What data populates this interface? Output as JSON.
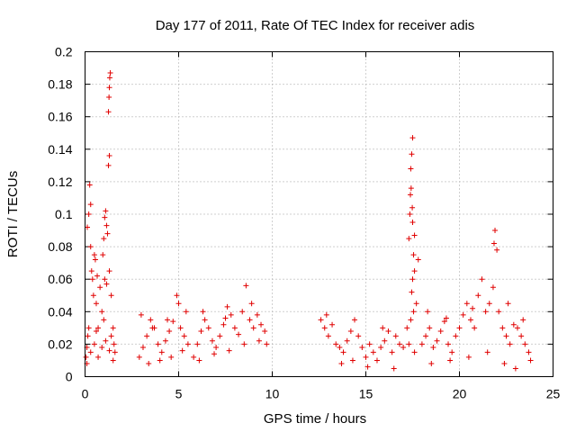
{
  "chart_data": {
    "type": "scatter",
    "title": "Day 177 of 2011, Rate Of TEC Index for receiver adis",
    "xlabel": "GPS time / hours",
    "ylabel": "ROTI / TECUs",
    "xlim": [
      0,
      25
    ],
    "ylim": [
      0,
      0.2
    ],
    "xticks": [
      0,
      5,
      10,
      15,
      20,
      25
    ],
    "xtick_labels": [
      "0",
      "5",
      "10",
      "15",
      "20",
      "25"
    ],
    "yticks": [
      0,
      0.02,
      0.04,
      0.06,
      0.08,
      0.1,
      0.12,
      0.14,
      0.16,
      0.18,
      0.2
    ],
    "ytick_labels": [
      "0",
      "0.02",
      "0.04",
      "0.06",
      "0.08",
      "0.1",
      "0.12",
      "0.14",
      "0.16",
      "0.18",
      "0.2"
    ],
    "grid": true,
    "marker": "+",
    "color": "#e00000",
    "series": [
      {
        "name": "ROTI",
        "points": [
          [
            0.05,
            0.012
          ],
          [
            0.1,
            0.018
          ],
          [
            0.15,
            0.025
          ],
          [
            0.2,
            0.1
          ],
          [
            0.25,
            0.118
          ],
          [
            0.3,
            0.106
          ],
          [
            0.12,
            0.092
          ],
          [
            0.35,
            0.065
          ],
          [
            0.4,
            0.06
          ],
          [
            0.45,
            0.05
          ],
          [
            0.5,
            0.075
          ],
          [
            0.55,
            0.072
          ],
          [
            0.3,
            0.08
          ],
          [
            0.6,
            0.045
          ],
          [
            0.65,
            0.062
          ],
          [
            0.7,
            0.03
          ],
          [
            0.8,
            0.055
          ],
          [
            0.9,
            0.04
          ],
          [
            1.0,
            0.085
          ],
          [
            1.05,
            0.098
          ],
          [
            1.1,
            0.102
          ],
          [
            1.15,
            0.093
          ],
          [
            0.95,
            0.075
          ],
          [
            1.05,
            0.06
          ],
          [
            1.15,
            0.057
          ],
          [
            1.2,
            0.088
          ],
          [
            1.25,
            0.163
          ],
          [
            1.28,
            0.172
          ],
          [
            1.3,
            0.178
          ],
          [
            1.32,
            0.184
          ],
          [
            1.35,
            0.187
          ],
          [
            1.3,
            0.136
          ],
          [
            1.25,
            0.13
          ],
          [
            1.3,
            0.065
          ],
          [
            1.4,
            0.05
          ],
          [
            1.5,
            0.03
          ],
          [
            1.55,
            0.02
          ],
          [
            1.6,
            0.015
          ],
          [
            0.1,
            0.008
          ],
          [
            0.3,
            0.015
          ],
          [
            0.5,
            0.02
          ],
          [
            0.7,
            0.012
          ],
          [
            0.9,
            0.018
          ],
          [
            1.1,
            0.022
          ],
          [
            1.3,
            0.016
          ],
          [
            1.5,
            0.01
          ],
          [
            0.2,
            0.03
          ],
          [
            0.6,
            0.028
          ],
          [
            1.0,
            0.035
          ],
          [
            1.4,
            0.025
          ],
          [
            2.9,
            0.012
          ],
          [
            3.1,
            0.018
          ],
          [
            3.3,
            0.025
          ],
          [
            3.5,
            0.035
          ],
          [
            3.7,
            0.03
          ],
          [
            3.9,
            0.02
          ],
          [
            4.1,
            0.015
          ],
          [
            4.3,
            0.022
          ],
          [
            4.5,
            0.028
          ],
          [
            4.7,
            0.034
          ],
          [
            4.9,
            0.05
          ],
          [
            5.0,
            0.045
          ],
          [
            5.1,
            0.03
          ],
          [
            5.3,
            0.025
          ],
          [
            5.5,
            0.02
          ],
          [
            3.4,
            0.008
          ],
          [
            4.0,
            0.01
          ],
          [
            4.6,
            0.012
          ],
          [
            5.2,
            0.016
          ],
          [
            3.0,
            0.038
          ],
          [
            3.6,
            0.03
          ],
          [
            4.4,
            0.035
          ],
          [
            5.4,
            0.04
          ],
          [
            5.8,
            0.012
          ],
          [
            6.0,
            0.02
          ],
          [
            6.2,
            0.028
          ],
          [
            6.4,
            0.035
          ],
          [
            6.6,
            0.03
          ],
          [
            6.8,
            0.022
          ],
          [
            7.0,
            0.018
          ],
          [
            7.2,
            0.025
          ],
          [
            7.4,
            0.032
          ],
          [
            7.6,
            0.043
          ],
          [
            7.8,
            0.038
          ],
          [
            8.0,
            0.03
          ],
          [
            8.2,
            0.026
          ],
          [
            8.4,
            0.04
          ],
          [
            8.6,
            0.056
          ],
          [
            8.8,
            0.035
          ],
          [
            9.0,
            0.03
          ],
          [
            9.2,
            0.038
          ],
          [
            9.4,
            0.032
          ],
          [
            9.6,
            0.028
          ],
          [
            9.7,
            0.02
          ],
          [
            6.1,
            0.01
          ],
          [
            6.9,
            0.014
          ],
          [
            7.7,
            0.016
          ],
          [
            8.5,
            0.02
          ],
          [
            9.3,
            0.022
          ],
          [
            6.3,
            0.04
          ],
          [
            7.5,
            0.036
          ],
          [
            8.9,
            0.045
          ],
          [
            12.6,
            0.035
          ],
          [
            12.8,
            0.03
          ],
          [
            13.0,
            0.025
          ],
          [
            13.2,
            0.032
          ],
          [
            13.4,
            0.02
          ],
          [
            13.6,
            0.018
          ],
          [
            13.8,
            0.015
          ],
          [
            14.0,
            0.022
          ],
          [
            14.2,
            0.028
          ],
          [
            14.4,
            0.035
          ],
          [
            14.6,
            0.025
          ],
          [
            14.8,
            0.018
          ],
          [
            15.0,
            0.012
          ],
          [
            15.2,
            0.02
          ],
          [
            15.4,
            0.015
          ],
          [
            15.6,
            0.01
          ],
          [
            15.8,
            0.018
          ],
          [
            16.0,
            0.022
          ],
          [
            16.2,
            0.028
          ],
          [
            16.4,
            0.015
          ],
          [
            16.6,
            0.025
          ],
          [
            16.8,
            0.02
          ],
          [
            17.0,
            0.018
          ],
          [
            12.9,
            0.038
          ],
          [
            13.7,
            0.008
          ],
          [
            14.3,
            0.01
          ],
          [
            15.1,
            0.006
          ],
          [
            15.9,
            0.03
          ],
          [
            16.5,
            0.005
          ],
          [
            17.2,
            0.03
          ],
          [
            17.3,
            0.085
          ],
          [
            17.35,
            0.1
          ],
          [
            17.4,
            0.128
          ],
          [
            17.45,
            0.137
          ],
          [
            17.5,
            0.147
          ],
          [
            17.42,
            0.116
          ],
          [
            17.38,
            0.112
          ],
          [
            17.48,
            0.104
          ],
          [
            17.5,
            0.095
          ],
          [
            17.55,
            0.075
          ],
          [
            17.6,
            0.065
          ],
          [
            17.5,
            0.06
          ],
          [
            17.45,
            0.052
          ],
          [
            17.55,
            0.04
          ],
          [
            17.4,
            0.035
          ],
          [
            17.6,
            0.087
          ],
          [
            17.7,
            0.045
          ],
          [
            17.8,
            0.072
          ],
          [
            17.3,
            0.02
          ],
          [
            17.6,
            0.015
          ],
          [
            18.0,
            0.02
          ],
          [
            18.2,
            0.025
          ],
          [
            18.4,
            0.03
          ],
          [
            18.6,
            0.018
          ],
          [
            18.8,
            0.022
          ],
          [
            19.0,
            0.028
          ],
          [
            19.2,
            0.034
          ],
          [
            19.4,
            0.02
          ],
          [
            19.6,
            0.015
          ],
          [
            19.8,
            0.025
          ],
          [
            20.0,
            0.03
          ],
          [
            20.2,
            0.038
          ],
          [
            20.4,
            0.045
          ],
          [
            20.6,
            0.035
          ],
          [
            20.8,
            0.03
          ],
          [
            21.0,
            0.05
          ],
          [
            21.2,
            0.06
          ],
          [
            21.4,
            0.04
          ],
          [
            21.6,
            0.045
          ],
          [
            21.8,
            0.055
          ],
          [
            21.85,
            0.082
          ],
          [
            21.9,
            0.09
          ],
          [
            22.0,
            0.078
          ],
          [
            22.1,
            0.04
          ],
          [
            22.3,
            0.03
          ],
          [
            22.5,
            0.025
          ],
          [
            22.7,
            0.02
          ],
          [
            22.9,
            0.032
          ],
          [
            23.1,
            0.03
          ],
          [
            23.3,
            0.025
          ],
          [
            23.5,
            0.02
          ],
          [
            23.7,
            0.015
          ],
          [
            23.8,
            0.01
          ],
          [
            18.5,
            0.008
          ],
          [
            19.5,
            0.01
          ],
          [
            20.5,
            0.012
          ],
          [
            21.5,
            0.015
          ],
          [
            22.4,
            0.008
          ],
          [
            23.0,
            0.005
          ],
          [
            18.3,
            0.04
          ],
          [
            19.3,
            0.036
          ],
          [
            20.7,
            0.042
          ],
          [
            22.6,
            0.045
          ],
          [
            23.4,
            0.035
          ]
        ]
      }
    ]
  }
}
